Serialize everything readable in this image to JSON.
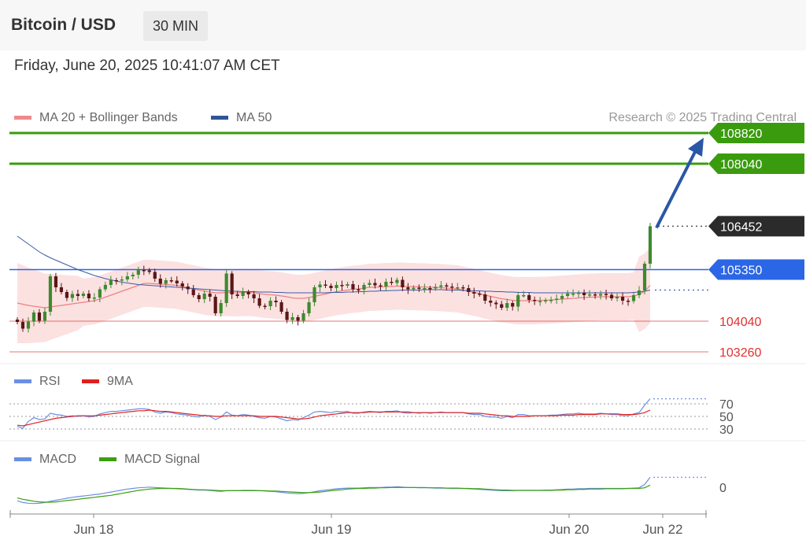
{
  "header": {
    "title": "Bitcoin / USD",
    "timeframe": "30 MIN",
    "datetime": "Friday, June 20, 2025 10:41:07 AM CET"
  },
  "credit": "Research © 2025 Trading Central",
  "colors": {
    "green": "#3a9b0f",
    "blue": "#2b66e6",
    "dark": "#2b2b2b",
    "red": "#e03030",
    "bb_fill": "#fbd7d7",
    "ma20": "#f08080",
    "ma50": "#3b5ba8",
    "arrow": "#2a57a5"
  },
  "chart_data": [
    {
      "type": "candlestick",
      "legend": [
        {
          "label": "MA 20 + Bollinger Bands",
          "color": "#f08a8a"
        },
        {
          "label": "MA 50",
          "color": "#2f5597"
        }
      ],
      "ylim": [
        103000,
        109000
      ],
      "x_labels": [
        "Jun 18",
        "Jun 19",
        "Jun 20",
        "Jun 22"
      ],
      "price_levels": [
        {
          "value": 108820,
          "label": "108820",
          "style": "target-green"
        },
        {
          "value": 108040,
          "label": "108040",
          "style": "target-green"
        },
        {
          "value": 106452,
          "label": "106452",
          "style": "current-dark"
        },
        {
          "value": 105350,
          "label": "105350",
          "style": "pivot-blue"
        },
        {
          "value": 104040,
          "label": "104040",
          "style": "support-red"
        },
        {
          "value": 103260,
          "label": "103260",
          "style": "support-red"
        }
      ],
      "arrow_target": 108820,
      "close": [
        104020,
        103850,
        104030,
        104260,
        104050,
        104280,
        105180,
        104900,
        104780,
        104630,
        104730,
        104680,
        104740,
        104620,
        104640,
        104850,
        104960,
        105080,
        105070,
        105100,
        105180,
        105220,
        105340,
        105330,
        105290,
        105120,
        104990,
        105080,
        105070,
        105000,
        104920,
        104850,
        104700,
        104600,
        104740,
        104660,
        104240,
        104500,
        105250,
        104720,
        104680,
        104780,
        104720,
        104620,
        104430,
        104420,
        104560,
        104520,
        104280,
        104070,
        104140,
        104050,
        104240,
        104520,
        104900,
        104970,
        104940,
        104880,
        104960,
        104940,
        104980,
        104850,
        104840,
        104960,
        105010,
        104950,
        104920,
        105040,
        105010,
        105090,
        104900,
        104850,
        104890,
        104860,
        104880,
        104870,
        104910,
        104950,
        104920,
        104890,
        104900,
        104880,
        104780,
        104740,
        104720,
        104560,
        104510,
        104470,
        104380,
        104500,
        104410,
        104700,
        104700,
        104580,
        104550,
        104550,
        104570,
        104580,
        104610,
        104680,
        104740,
        104740,
        104760,
        104700,
        104720,
        104690,
        104730,
        104710,
        104620,
        104660,
        104560,
        104550,
        104700,
        104820,
        105500,
        106452
      ],
      "ma20": [
        104500,
        104470,
        104440,
        104420,
        104400,
        104380,
        104400,
        104420,
        104440,
        104460,
        104480,
        104500,
        104520,
        104540,
        104560,
        104600,
        104650,
        104700,
        104750,
        104800,
        104850,
        104900,
        104950,
        105000,
        105000,
        104990,
        104980,
        104970,
        104960,
        104950,
        104920,
        104890,
        104860,
        104830,
        104800,
        104780,
        104760,
        104760,
        104770,
        104760,
        104760,
        104770,
        104770,
        104760,
        104740,
        104720,
        104710,
        104700,
        104680,
        104660,
        104630,
        104620,
        104620,
        104640,
        104670,
        104700,
        104730,
        104760,
        104790,
        104810,
        104830,
        104850,
        104860,
        104880,
        104900,
        104900,
        104910,
        104920,
        104920,
        104930,
        104930,
        104920,
        104920,
        104910,
        104910,
        104900,
        104900,
        104890,
        104880,
        104870,
        104860,
        104830,
        104800,
        104770,
        104740,
        104700,
        104670,
        104640,
        104610,
        104590,
        104570,
        104560,
        104560,
        104560,
        104560,
        104570,
        104570,
        104580,
        104590,
        104600,
        104610,
        104620,
        104630,
        104640,
        104650,
        104650,
        104660,
        104660,
        104660,
        104660,
        104660,
        104660,
        104680,
        104720,
        104800,
        104950
      ],
      "ma50": [
        106200,
        106100,
        106000,
        105900,
        105800,
        105720,
        105650,
        105590,
        105530,
        105470,
        105410,
        105350,
        105300,
        105250,
        105200,
        105160,
        105120,
        105090,
        105060,
        105030,
        105010,
        104990,
        104970,
        104960,
        104950,
        104940,
        104930,
        104920,
        104910,
        104900,
        104890,
        104880,
        104870,
        104860,
        104850,
        104840,
        104830,
        104820,
        104810,
        104800,
        104800,
        104790,
        104790,
        104790,
        104780,
        104780,
        104780,
        104770,
        104770,
        104760,
        104760,
        104760,
        104760,
        104760,
        104760,
        104760,
        104760,
        104770,
        104770,
        104770,
        104780,
        104780,
        104790,
        104790,
        104800,
        104800,
        104810,
        104810,
        104820,
        104820,
        104830,
        104830,
        104830,
        104830,
        104840,
        104840,
        104840,
        104840,
        104830,
        104830,
        104830,
        104820,
        104820,
        104810,
        104810,
        104800,
        104800,
        104790,
        104790,
        104780,
        104780,
        104770,
        104770,
        104770,
        104760,
        104760,
        104760,
        104760,
        104760,
        104760,
        104760,
        104760,
        104760,
        104760,
        104760,
        104760,
        104760,
        104760,
        104760,
        104760,
        104760,
        104760,
        104770,
        104780,
        104800,
        104830
      ],
      "bb_width": 600
    },
    {
      "type": "line",
      "legend": [
        {
          "label": "RSI",
          "color": "#6b8fe3"
        },
        {
          "label": "9MA",
          "color": "#e02020"
        }
      ],
      "ylim": [
        20,
        80
      ],
      "levels": [
        {
          "value": 70,
          "label": "70"
        },
        {
          "value": 50,
          "label": "50"
        },
        {
          "value": 30,
          "label": "30"
        }
      ],
      "series": [
        {
          "name": "RSI",
          "values": [
            34,
            31,
            42,
            48,
            45,
            46,
            55,
            53,
            52,
            50,
            51,
            50,
            51,
            49,
            50,
            54,
            56,
            58,
            58,
            59,
            60,
            61,
            62,
            62,
            61,
            57,
            55,
            57,
            56,
            54,
            53,
            52,
            50,
            49,
            52,
            50,
            45,
            49,
            57,
            52,
            51,
            53,
            52,
            50,
            48,
            47,
            50,
            49,
            46,
            43,
            45,
            44,
            48,
            52,
            57,
            58,
            57,
            56,
            58,
            57,
            58,
            55,
            55,
            57,
            58,
            57,
            56,
            58,
            58,
            59,
            56,
            55,
            56,
            55,
            56,
            55,
            56,
            57,
            56,
            56,
            56,
            56,
            54,
            53,
            53,
            50,
            49,
            49,
            47,
            50,
            48,
            53,
            53,
            51,
            51,
            51,
            51,
            52,
            52,
            53,
            54,
            54,
            55,
            54,
            54,
            54,
            55,
            54,
            53,
            53,
            51,
            51,
            54,
            56,
            68,
            78
          ]
        },
        {
          "name": "9MA",
          "values": [
            36,
            35,
            37,
            39,
            41,
            43,
            45,
            47,
            48,
            49,
            50,
            51,
            51,
            51,
            51,
            52,
            53,
            54,
            55,
            56,
            57,
            58,
            59,
            59,
            60,
            59,
            58,
            58,
            57,
            56,
            55,
            54,
            53,
            52,
            51,
            51,
            50,
            50,
            51,
            51,
            51,
            51,
            51,
            51,
            50,
            50,
            50,
            50,
            49,
            48,
            47,
            46,
            46,
            47,
            49,
            51,
            52,
            53,
            54,
            55,
            56,
            56,
            56,
            56,
            57,
            57,
            57,
            57,
            57,
            57,
            57,
            57,
            56,
            56,
            56,
            56,
            56,
            56,
            56,
            56,
            56,
            56,
            55,
            55,
            55,
            54,
            53,
            52,
            51,
            51,
            50,
            50,
            50,
            50,
            51,
            51,
            51,
            51,
            51,
            52,
            52,
            52,
            53,
            53,
            53,
            53,
            54,
            54,
            54,
            54,
            53,
            53,
            53,
            54,
            56,
            60
          ]
        }
      ]
    },
    {
      "type": "line",
      "legend": [
        {
          "label": "MACD",
          "color": "#6b8fe3"
        },
        {
          "label": "MACD Signal",
          "color": "#3aa010"
        }
      ],
      "ylim": [
        -700,
        500
      ],
      "zero_label": "0",
      "series": [
        {
          "name": "MACD",
          "values": [
            -420,
            -470,
            -490,
            -500,
            -490,
            -470,
            -430,
            -400,
            -370,
            -340,
            -310,
            -290,
            -270,
            -250,
            -230,
            -210,
            -180,
            -150,
            -120,
            -90,
            -60,
            -40,
            -20,
            -10,
            0,
            -10,
            -20,
            -30,
            -40,
            -50,
            -60,
            -70,
            -80,
            -90,
            -90,
            -100,
            -120,
            -130,
            -110,
            -110,
            -110,
            -100,
            -100,
            -100,
            -110,
            -120,
            -130,
            -140,
            -160,
            -180,
            -190,
            -200,
            -190,
            -170,
            -140,
            -110,
            -90,
            -70,
            -50,
            -40,
            -30,
            -30,
            -30,
            -20,
            -10,
            -10,
            -10,
            0,
            0,
            10,
            0,
            -10,
            -10,
            -20,
            -20,
            -20,
            -30,
            -30,
            -30,
            -40,
            -40,
            -40,
            -50,
            -60,
            -70,
            -80,
            -90,
            -100,
            -110,
            -110,
            -110,
            -100,
            -100,
            -100,
            -100,
            -100,
            -90,
            -90,
            -80,
            -70,
            -60,
            -60,
            -50,
            -50,
            -40,
            -40,
            -40,
            -40,
            -40,
            -40,
            -40,
            -40,
            -30,
            -20,
            80,
            300
          ]
        },
        {
          "name": "MACD Signal",
          "values": [
            -330,
            -370,
            -400,
            -430,
            -450,
            -460,
            -460,
            -450,
            -430,
            -410,
            -390,
            -370,
            -350,
            -330,
            -310,
            -290,
            -270,
            -250,
            -220,
            -190,
            -160,
            -130,
            -100,
            -80,
            -60,
            -50,
            -40,
            -40,
            -40,
            -40,
            -50,
            -60,
            -70,
            -80,
            -80,
            -90,
            -100,
            -110,
            -110,
            -110,
            -110,
            -110,
            -110,
            -110,
            -110,
            -110,
            -120,
            -120,
            -130,
            -140,
            -150,
            -160,
            -170,
            -170,
            -160,
            -150,
            -130,
            -110,
            -90,
            -80,
            -60,
            -50,
            -40,
            -40,
            -30,
            -30,
            -20,
            -20,
            -10,
            -10,
            -10,
            -10,
            -10,
            -10,
            -10,
            -20,
            -20,
            -20,
            -30,
            -30,
            -30,
            -40,
            -40,
            -50,
            -50,
            -60,
            -70,
            -80,
            -90,
            -90,
            -100,
            -100,
            -100,
            -100,
            -100,
            -100,
            -100,
            -100,
            -90,
            -90,
            -80,
            -80,
            -70,
            -70,
            -60,
            -60,
            -60,
            -50,
            -50,
            -50,
            -50,
            -40,
            -40,
            -40,
            -20,
            60
          ]
        }
      ]
    }
  ]
}
